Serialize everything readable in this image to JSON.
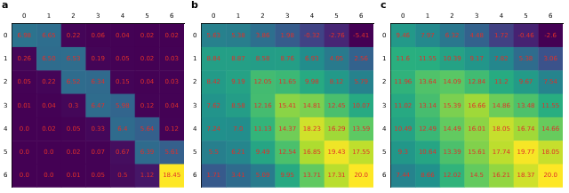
{
  "chart_data": [
    {
      "type": "heatmap",
      "title": "a",
      "color": "viridis",
      "data_labels": true,
      "grid": false,
      "x": [
        0,
        1,
        2,
        3,
        4,
        5,
        6
      ],
      "y": [
        0,
        1,
        2,
        3,
        4,
        5,
        6
      ],
      "xlim": [
        -0.5,
        6.5
      ],
      "ylim": [
        -0.5,
        6.5
      ],
      "xticks": [
        0,
        1,
        2,
        3,
        4,
        5,
        6
      ],
      "yticks": [
        0,
        1,
        2,
        3,
        4,
        5,
        6
      ],
      "values": [
        [
          6.98,
          6.65,
          0.22,
          0.06,
          0.04,
          0.02,
          0.02
        ],
        [
          0.26,
          6.5,
          6.53,
          0.19,
          0.05,
          0.02,
          0.03
        ],
        [
          0.05,
          0.22,
          6.52,
          6.34,
          0.15,
          0.04,
          0.03
        ],
        [
          0.01,
          0.04,
          0.3,
          6.47,
          5.98,
          0.12,
          0.04
        ],
        [
          0.0,
          0.02,
          0.05,
          0.33,
          6.4,
          5.64,
          0.12
        ],
        [
          0.0,
          0.0,
          0.02,
          0.07,
          0.67,
          6.39,
          5.61
        ],
        [
          0.0,
          0.0,
          0.01,
          0.05,
          0.5,
          1.12,
          18.45
        ]
      ],
      "value_labels": [
        [
          "6.98",
          "6.65",
          "0.22",
          "0.06",
          "0.04",
          "0.02",
          "0.02"
        ],
        [
          "0.26",
          "6.50",
          "6.53",
          "0.19",
          "0.05",
          "0.02",
          "0.03"
        ],
        [
          "0.05",
          "0.22",
          "6.52",
          "6.34",
          "0.15",
          "0.04",
          "0.03"
        ],
        [
          "0.01",
          "0.04",
          "0.3",
          "6.47",
          "5.98",
          "0.12",
          "0.04"
        ],
        [
          "0.0",
          "0.02",
          "0.05",
          "0.33",
          "6.4",
          "5.64",
          "0.12"
        ],
        [
          "0.0",
          "0.0",
          "0.02",
          "0.07",
          "0.67",
          "6.39",
          "5.61"
        ],
        [
          "0.0",
          "0.0",
          "0.01",
          "0.05",
          "0.5",
          "1.12",
          "18.45"
        ]
      ]
    },
    {
      "type": "heatmap",
      "title": "b",
      "color": "viridis",
      "data_labels": true,
      "grid": false,
      "x": [
        0,
        1,
        2,
        3,
        4,
        5,
        6
      ],
      "y": [
        0,
        1,
        2,
        3,
        4,
        5,
        6
      ],
      "xlim": [
        -0.5,
        6.5
      ],
      "ylim": [
        -0.5,
        6.5
      ],
      "xticks": [
        0,
        1,
        2,
        3,
        4,
        5,
        6
      ],
      "yticks": [
        0,
        1,
        2,
        3,
        4,
        5,
        6
      ],
      "values": [
        [
          5.63,
          5.38,
          3.86,
          1.98,
          -0.32,
          -2.76,
          -5.41
        ],
        [
          8.84,
          8.87,
          8.58,
          8.76,
          6.93,
          4.95,
          2.56
        ],
        [
          8.42,
          9.19,
          12.05,
          11.65,
          9.98,
          8.12,
          5.79
        ],
        [
          7.62,
          8.58,
          12.16,
          15.41,
          14.81,
          12.45,
          10.07
        ],
        [
          7.24,
          7.0,
          11.13,
          14.37,
          18.23,
          16.29,
          13.59
        ],
        [
          5.5,
          6.21,
          9.49,
          12.54,
          16.85,
          19.43,
          17.55
        ],
        [
          1.71,
          3.41,
          5.09,
          9.95,
          13.71,
          17.31,
          20.0
        ]
      ],
      "value_labels": [
        [
          "5.63",
          "5.38",
          "3.86",
          "1.98",
          "-0.32",
          "-2.76",
          "-5.41"
        ],
        [
          "8.84",
          "8.87",
          "8.58",
          "8.76",
          "6.93",
          "4.95",
          "2.56"
        ],
        [
          "8.42",
          "9.19",
          "12.05",
          "11.65",
          "9.98",
          "8.12",
          "5.79"
        ],
        [
          "7.62",
          "8.58",
          "12.16",
          "15.41",
          "14.81",
          "12.45",
          "10.07"
        ],
        [
          "7.24",
          "7.0",
          "11.13",
          "14.37",
          "18.23",
          "16.29",
          "13.59"
        ],
        [
          "5.5",
          "6.21",
          "9.49",
          "12.54",
          "16.85",
          "19.43",
          "17.55"
        ],
        [
          "1.71",
          "3.41",
          "5.09",
          "9.95",
          "13.71",
          "17.31",
          "20.0"
        ]
      ]
    },
    {
      "type": "heatmap",
      "title": "c",
      "color": "viridis",
      "data_labels": true,
      "grid": false,
      "x": [
        0,
        1,
        2,
        3,
        4,
        5,
        6
      ],
      "y": [
        0,
        1,
        2,
        3,
        4,
        5,
        6
      ],
      "xlim": [
        -0.5,
        6.5
      ],
      "ylim": [
        -0.5,
        6.5
      ],
      "xticks": [
        0,
        1,
        2,
        3,
        4,
        5,
        6
      ],
      "yticks": [
        0,
        1,
        2,
        3,
        4,
        5,
        6
      ],
      "values": [
        [
          9.46,
          7.97,
          6.32,
          4.48,
          1.72,
          -0.46,
          -2.6
        ],
        [
          11.6,
          11.55,
          10.39,
          9.17,
          7.82,
          5.38,
          3.06
        ],
        [
          11.96,
          13.64,
          14.09,
          12.84,
          11.2,
          9.67,
          7.54
        ],
        [
          11.02,
          13.14,
          15.39,
          16.66,
          14.86,
          13.48,
          11.55
        ],
        [
          10.49,
          12.49,
          14.49,
          16.01,
          18.05,
          16.74,
          14.66
        ],
        [
          9.3,
          10.64,
          13.39,
          15.61,
          17.74,
          19.77,
          18.05
        ],
        [
          7.44,
          8.66,
          12.02,
          14.5,
          16.21,
          18.37,
          20.0
        ]
      ],
      "value_labels": [
        [
          "9.46",
          "7.97",
          "6.32",
          "4.48",
          "1.72",
          "-0.46",
          "-2.6"
        ],
        [
          "11.6",
          "11.55",
          "10.39",
          "9.17",
          "7.82",
          "5.38",
          "3.06"
        ],
        [
          "11.96",
          "13.64",
          "14.09",
          "12.84",
          "11.2",
          "9.67",
          "7.54"
        ],
        [
          "11.02",
          "13.14",
          "15.39",
          "16.66",
          "14.86",
          "13.48",
          "11.55"
        ],
        [
          "10.49",
          "12.49",
          "14.49",
          "16.01",
          "18.05",
          "16.74",
          "14.66"
        ],
        [
          "9.3",
          "10.64",
          "13.39",
          "15.61",
          "17.74",
          "19.77",
          "18.05"
        ],
        [
          "7.44",
          "8.66",
          "12.02",
          "14.5",
          "16.21",
          "18.37",
          "20.0"
        ]
      ]
    }
  ]
}
